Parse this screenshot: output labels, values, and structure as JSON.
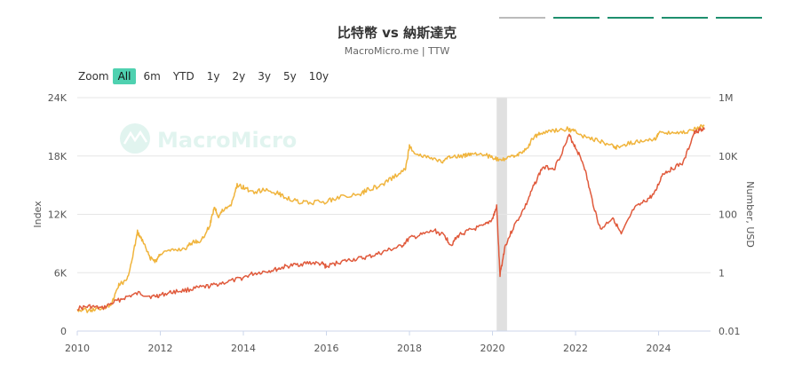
{
  "header": {
    "title": "比特幣 vs 納斯達克",
    "subtitle": "MacroMicro.me | TTW",
    "tabs": [
      {
        "color": "#bbbbbb"
      },
      {
        "color": "#1e8f6e"
      },
      {
        "color": "#1e8f6e"
      },
      {
        "color": "#1e8f6e"
      },
      {
        "color": "#1e8f6e"
      }
    ]
  },
  "zoom": {
    "label": "Zoom",
    "options": [
      "All",
      "6m",
      "YTD",
      "1y",
      "2y",
      "3y",
      "5y",
      "10y"
    ],
    "selected": "All"
  },
  "watermark": {
    "text": "MacroMicro"
  },
  "chart_data": {
    "type": "line",
    "colors": {
      "index": "#f0b43c",
      "btc": "#e05a3c",
      "shade": "#e0e0e0",
      "accent": "#4fd1b0"
    },
    "x_ticks": [
      "2010",
      "2012",
      "2014",
      "2016",
      "2018",
      "2020",
      "2022",
      "2024"
    ],
    "xlim": [
      2010,
      2025.25
    ],
    "left_axis": {
      "label": "Index",
      "tick_labels": [
        "0",
        "6K",
        "12K",
        "18K",
        "24K"
      ],
      "tick_values": [
        0,
        6000,
        12000,
        18000,
        24000
      ],
      "ylim": [
        0,
        24000
      ]
    },
    "right_axis": {
      "label": "Number, USD",
      "scale": "log",
      "tick_labels": [
        "0.01",
        "1",
        "100",
        "10K",
        "1M"
      ],
      "tick_values": [
        0.01,
        1,
        100,
        10000,
        1000000
      ],
      "ylim": [
        0.01,
        1000000
      ]
    },
    "shaded_regions": [
      {
        "from": 2020.1,
        "to": 2020.35
      }
    ],
    "series": [
      {
        "key": "index",
        "axis": "left",
        "points": [
          [
            2010.0,
            2200
          ],
          [
            2010.3,
            2100
          ],
          [
            2010.5,
            2300
          ],
          [
            2010.75,
            2600
          ],
          [
            2010.85,
            3000
          ],
          [
            2011.0,
            4800
          ],
          [
            2011.2,
            5200
          ],
          [
            2011.35,
            8000
          ],
          [
            2011.45,
            10200
          ],
          [
            2011.6,
            9000
          ],
          [
            2011.75,
            7500
          ],
          [
            2011.9,
            7200
          ],
          [
            2012.0,
            8000
          ],
          [
            2012.3,
            8300
          ],
          [
            2012.6,
            8500
          ],
          [
            2012.8,
            9200
          ],
          [
            2013.0,
            9300
          ],
          [
            2013.2,
            11000
          ],
          [
            2013.3,
            12800
          ],
          [
            2013.4,
            11800
          ],
          [
            2013.5,
            12400
          ],
          [
            2013.7,
            13000
          ],
          [
            2013.85,
            15000
          ],
          [
            2014.0,
            14800
          ],
          [
            2014.2,
            14300
          ],
          [
            2014.5,
            14500
          ],
          [
            2014.8,
            14200
          ],
          [
            2015.0,
            13800
          ],
          [
            2015.3,
            13300
          ],
          [
            2015.6,
            13200
          ],
          [
            2016.0,
            13300
          ],
          [
            2016.3,
            13800
          ],
          [
            2016.8,
            14000
          ],
          [
            2017.0,
            14600
          ],
          [
            2017.3,
            14900
          ],
          [
            2017.6,
            15800
          ],
          [
            2017.9,
            16600
          ],
          [
            2018.0,
            19000
          ],
          [
            2018.2,
            18100
          ],
          [
            2018.5,
            17800
          ],
          [
            2018.8,
            17400
          ],
          [
            2019.0,
            17900
          ],
          [
            2019.3,
            18000
          ],
          [
            2019.5,
            18300
          ],
          [
            2019.8,
            18200
          ],
          [
            2020.0,
            17800
          ],
          [
            2020.2,
            17500
          ],
          [
            2020.4,
            17800
          ],
          [
            2020.6,
            18200
          ],
          [
            2020.8,
            18600
          ],
          [
            2021.0,
            20000
          ],
          [
            2021.2,
            20400
          ],
          [
            2021.5,
            20600
          ],
          [
            2021.8,
            20800
          ],
          [
            2022.0,
            20500
          ],
          [
            2022.3,
            19800
          ],
          [
            2022.6,
            19500
          ],
          [
            2022.9,
            19000
          ],
          [
            2023.0,
            18900
          ],
          [
            2023.3,
            19300
          ],
          [
            2023.6,
            19500
          ],
          [
            2023.9,
            19700
          ],
          [
            2024.0,
            20300
          ],
          [
            2024.3,
            20500
          ],
          [
            2024.6,
            20400
          ],
          [
            2024.9,
            20800
          ],
          [
            2025.1,
            21100
          ]
        ]
      },
      {
        "key": "btc",
        "axis": "right",
        "points": [
          [
            2010.0,
            0.06
          ],
          [
            2010.3,
            0.07
          ],
          [
            2010.6,
            0.06
          ],
          [
            2010.9,
            0.1
          ],
          [
            2011.2,
            0.15
          ],
          [
            2011.5,
            0.2
          ],
          [
            2011.8,
            0.15
          ],
          [
            2012.0,
            0.17
          ],
          [
            2012.3,
            0.22
          ],
          [
            2012.6,
            0.25
          ],
          [
            2012.9,
            0.3
          ],
          [
            2013.2,
            0.35
          ],
          [
            2013.5,
            0.45
          ],
          [
            2013.9,
            0.6
          ],
          [
            2014.2,
            0.9
          ],
          [
            2014.5,
            1.1
          ],
          [
            2014.8,
            1.3
          ],
          [
            2015.0,
            1.6
          ],
          [
            2015.3,
            1.9
          ],
          [
            2015.6,
            2.2
          ],
          [
            2015.9,
            2.0
          ],
          [
            2016.0,
            1.6
          ],
          [
            2016.3,
            2.3
          ],
          [
            2016.6,
            2.8
          ],
          [
            2016.9,
            3.2
          ],
          [
            2017.2,
            4.2
          ],
          [
            2017.5,
            6.0
          ],
          [
            2017.8,
            8.0
          ],
          [
            2018.0,
            15
          ],
          [
            2018.3,
            20
          ],
          [
            2018.6,
            28
          ],
          [
            2018.85,
            18
          ],
          [
            2019.0,
            9
          ],
          [
            2019.2,
            20
          ],
          [
            2019.5,
            30
          ],
          [
            2019.8,
            40
          ],
          [
            2020.0,
            70
          ],
          [
            2020.1,
            180
          ],
          [
            2020.18,
            0.8
          ],
          [
            2020.3,
            8
          ],
          [
            2020.5,
            35
          ],
          [
            2020.8,
            200
          ],
          [
            2021.0,
            1000
          ],
          [
            2021.2,
            4000
          ],
          [
            2021.5,
            4000
          ],
          [
            2021.85,
            50000
          ],
          [
            2022.0,
            20000
          ],
          [
            2022.2,
            5000
          ],
          [
            2022.4,
            300
          ],
          [
            2022.6,
            30
          ],
          [
            2022.9,
            80
          ],
          [
            2023.1,
            20
          ],
          [
            2023.4,
            150
          ],
          [
            2023.7,
            300
          ],
          [
            2023.9,
            500
          ],
          [
            2024.1,
            2500
          ],
          [
            2024.3,
            3500
          ],
          [
            2024.6,
            6000
          ],
          [
            2024.85,
            60000
          ],
          [
            2025.0,
            80000
          ],
          [
            2025.1,
            80000
          ]
        ]
      }
    ]
  }
}
